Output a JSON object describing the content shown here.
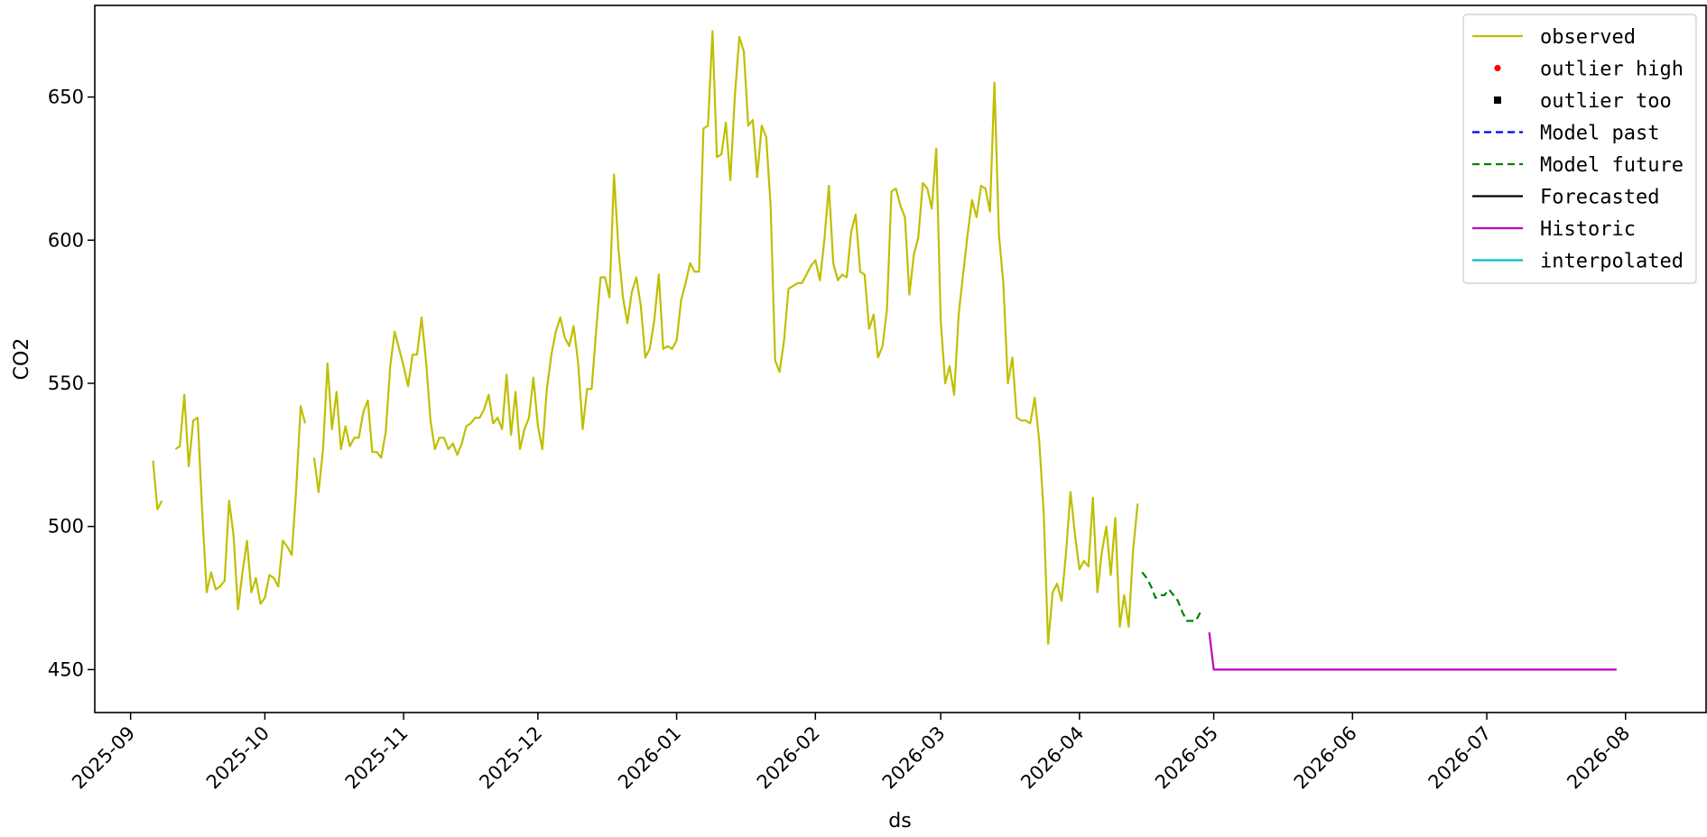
{
  "chart_data": {
    "type": "line",
    "xlabel": "ds",
    "ylabel": "CO2",
    "x_axis_type": "date",
    "xlim": [
      "2025-08-24",
      "2026-08-19"
    ],
    "ylim": [
      435,
      682
    ],
    "grid": false,
    "legend_placement": "top-right",
    "x_ticks": [
      "2025-09-01",
      "2025-10-01",
      "2025-11-01",
      "2025-12-01",
      "2026-01-01",
      "2026-02-01",
      "2026-03-01",
      "2026-04-01",
      "2026-05-01",
      "2026-06-01",
      "2026-07-01",
      "2026-08-01"
    ],
    "x_tick_labels": [
      "2025-09",
      "2025-10",
      "2025-11",
      "2025-12",
      "2026-01",
      "2026-02",
      "2026-03",
      "2026-04",
      "2026-05",
      "2026-06",
      "2026-07",
      "2026-08"
    ],
    "y_ticks": [
      450,
      500,
      550,
      600,
      650
    ],
    "y_tick_labels": [
      "450",
      "500",
      "550",
      "600",
      "650"
    ],
    "series": [
      {
        "name": "observed",
        "color": "#bfbf00",
        "style": "solid",
        "segments": [
          [
            [
              "2025-09-06",
              523
            ],
            [
              "2025-09-07",
              506
            ],
            [
              "2025-09-08",
              509
            ]
          ],
          [
            [
              "2025-09-11",
              527
            ],
            [
              "2025-09-12",
              528
            ],
            [
              "2025-09-13",
              546
            ],
            [
              "2025-09-14",
              521
            ],
            [
              "2025-09-15",
              537
            ],
            [
              "2025-09-16",
              538
            ],
            [
              "2025-09-17",
              505
            ],
            [
              "2025-09-18",
              477
            ],
            [
              "2025-09-19",
              484
            ],
            [
              "2025-09-20",
              478
            ],
            [
              "2025-09-21",
              479
            ],
            [
              "2025-09-22",
              481
            ],
            [
              "2025-09-23",
              509
            ],
            [
              "2025-09-24",
              497
            ],
            [
              "2025-09-25",
              471
            ],
            [
              "2025-09-26",
              484
            ],
            [
              "2025-09-27",
              495
            ],
            [
              "2025-09-28",
              477
            ],
            [
              "2025-09-29",
              482
            ],
            [
              "2025-09-30",
              473
            ],
            [
              "2025-10-01",
              475
            ],
            [
              "2025-10-02",
              483
            ],
            [
              "2025-10-03",
              482
            ],
            [
              "2025-10-04",
              479
            ],
            [
              "2025-10-05",
              495
            ],
            [
              "2025-10-06",
              493
            ],
            [
              "2025-10-07",
              490
            ],
            [
              "2025-10-08",
              513
            ],
            [
              "2025-10-09",
              542
            ],
            [
              "2025-10-10",
              536
            ]
          ],
          [
            [
              "2025-10-12",
              524
            ],
            [
              "2025-10-13",
              512
            ],
            [
              "2025-10-14",
              527
            ],
            [
              "2025-10-15",
              557
            ],
            [
              "2025-10-16",
              534
            ],
            [
              "2025-10-17",
              547
            ],
            [
              "2025-10-18",
              527
            ],
            [
              "2025-10-19",
              535
            ],
            [
              "2025-10-20",
              528
            ],
            [
              "2025-10-21",
              531
            ],
            [
              "2025-10-22",
              531
            ],
            [
              "2025-10-23",
              540
            ],
            [
              "2025-10-24",
              544
            ],
            [
              "2025-10-25",
              526
            ],
            [
              "2025-10-26",
              526
            ],
            [
              "2025-10-27",
              524
            ],
            [
              "2025-10-28",
              533
            ],
            [
              "2025-10-29",
              556
            ],
            [
              "2025-10-30",
              568
            ],
            [
              "2025-10-31",
              562
            ],
            [
              "2025-11-01",
              556
            ],
            [
              "2025-11-02",
              549
            ],
            [
              "2025-11-03",
              560
            ],
            [
              "2025-11-04",
              560
            ],
            [
              "2025-11-05",
              573
            ],
            [
              "2025-11-06",
              558
            ],
            [
              "2025-11-07",
              537
            ],
            [
              "2025-11-08",
              527
            ],
            [
              "2025-11-09",
              531
            ],
            [
              "2025-11-10",
              531
            ],
            [
              "2025-11-11",
              527
            ],
            [
              "2025-11-12",
              529
            ],
            [
              "2025-11-13",
              525
            ],
            [
              "2025-11-14",
              529
            ],
            [
              "2025-11-15",
              535
            ],
            [
              "2025-11-16",
              536
            ],
            [
              "2025-11-17",
              538
            ],
            [
              "2025-11-18",
              538
            ],
            [
              "2025-11-19",
              541
            ],
            [
              "2025-11-20",
              546
            ],
            [
              "2025-11-21",
              536
            ],
            [
              "2025-11-22",
              538
            ],
            [
              "2025-11-23",
              534
            ],
            [
              "2025-11-24",
              553
            ],
            [
              "2025-11-25",
              532
            ],
            [
              "2025-11-26",
              547
            ],
            [
              "2025-11-27",
              527
            ],
            [
              "2025-11-28",
              534
            ],
            [
              "2025-11-29",
              538
            ],
            [
              "2025-11-30",
              552
            ],
            [
              "2025-12-01",
              535
            ],
            [
              "2025-12-02",
              527
            ],
            [
              "2025-12-03",
              548
            ],
            [
              "2025-12-04",
              560
            ],
            [
              "2025-12-05",
              568
            ],
            [
              "2025-12-06",
              573
            ],
            [
              "2025-12-07",
              566
            ],
            [
              "2025-12-08",
              563
            ],
            [
              "2025-12-09",
              570
            ],
            [
              "2025-12-10",
              557
            ],
            [
              "2025-12-11",
              534
            ],
            [
              "2025-12-12",
              548
            ],
            [
              "2025-12-13",
              548
            ],
            [
              "2025-12-14",
              568
            ],
            [
              "2025-12-15",
              587
            ],
            [
              "2025-12-16",
              587
            ],
            [
              "2025-12-17",
              580
            ],
            [
              "2025-12-18",
              623
            ],
            [
              "2025-12-19",
              597
            ],
            [
              "2025-12-20",
              580
            ],
            [
              "2025-12-21",
              571
            ],
            [
              "2025-12-22",
              582
            ],
            [
              "2025-12-23",
              587
            ],
            [
              "2025-12-24",
              577
            ],
            [
              "2025-12-25",
              559
            ],
            [
              "2025-12-26",
              562
            ],
            [
              "2025-12-27",
              572
            ],
            [
              "2025-12-28",
              588
            ],
            [
              "2025-12-29",
              562
            ],
            [
              "2025-12-30",
              563
            ],
            [
              "2025-12-31",
              562
            ],
            [
              "2026-01-01",
              565
            ],
            [
              "2026-01-02",
              579
            ],
            [
              "2026-01-03",
              585
            ],
            [
              "2026-01-04",
              592
            ],
            [
              "2026-01-05",
              589
            ],
            [
              "2026-01-06",
              589
            ],
            [
              "2026-01-07",
              639
            ],
            [
              "2026-01-08",
              640
            ],
            [
              "2026-01-09",
              673
            ],
            [
              "2026-01-10",
              629
            ],
            [
              "2026-01-11",
              630
            ],
            [
              "2026-01-12",
              641
            ],
            [
              "2026-01-13",
              621
            ],
            [
              "2026-01-14",
              650
            ],
            [
              "2026-01-15",
              671
            ],
            [
              "2026-01-16",
              666
            ],
            [
              "2026-01-17",
              640
            ],
            [
              "2026-01-18",
              642
            ],
            [
              "2026-01-19",
              622
            ],
            [
              "2026-01-20",
              640
            ],
            [
              "2026-01-21",
              636
            ],
            [
              "2026-01-22",
              612
            ],
            [
              "2026-01-23",
              558
            ],
            [
              "2026-01-24",
              554
            ],
            [
              "2026-01-25",
              565
            ],
            [
              "2026-01-26",
              583
            ],
            [
              "2026-01-27",
              584
            ],
            [
              "2026-01-28",
              585
            ],
            [
              "2026-01-29",
              585
            ],
            [
              "2026-01-30",
              588
            ],
            [
              "2026-01-31",
              591
            ],
            [
              "2026-02-01",
              593
            ],
            [
              "2026-02-02",
              586
            ],
            [
              "2026-02-03",
              600
            ],
            [
              "2026-02-04",
              619
            ],
            [
              "2026-02-05",
              592
            ],
            [
              "2026-02-06",
              586
            ],
            [
              "2026-02-07",
              588
            ],
            [
              "2026-02-08",
              587
            ],
            [
              "2026-02-09",
              603
            ],
            [
              "2026-02-10",
              609
            ],
            [
              "2026-02-11",
              589
            ],
            [
              "2026-02-12",
              588
            ],
            [
              "2026-02-13",
              569
            ],
            [
              "2026-02-14",
              574
            ],
            [
              "2026-02-15",
              559
            ],
            [
              "2026-02-16",
              563
            ],
            [
              "2026-02-17",
              576
            ],
            [
              "2026-02-18",
              617
            ],
            [
              "2026-02-19",
              618
            ],
            [
              "2026-02-20",
              612
            ],
            [
              "2026-02-21",
              608
            ],
            [
              "2026-02-22",
              581
            ],
            [
              "2026-02-23",
              595
            ],
            [
              "2026-02-24",
              601
            ],
            [
              "2026-02-25",
              620
            ],
            [
              "2026-02-26",
              618
            ],
            [
              "2026-02-27",
              611
            ],
            [
              "2026-02-28",
              632
            ],
            [
              "2026-03-01",
              572
            ],
            [
              "2026-03-02",
              550
            ],
            [
              "2026-03-03",
              556
            ],
            [
              "2026-03-04",
              546
            ],
            [
              "2026-03-05",
              574
            ],
            [
              "2026-03-06",
              588
            ],
            [
              "2026-03-07",
              602
            ],
            [
              "2026-03-08",
              614
            ],
            [
              "2026-03-09",
              608
            ],
            [
              "2026-03-10",
              619
            ],
            [
              "2026-03-11",
              618
            ],
            [
              "2026-03-12",
              610
            ],
            [
              "2026-03-13",
              655
            ],
            [
              "2026-03-14",
              602
            ],
            [
              "2026-03-15",
              585
            ],
            [
              "2026-03-16",
              550
            ],
            [
              "2026-03-17",
              559
            ],
            [
              "2026-03-18",
              538
            ],
            [
              "2026-03-19",
              537
            ],
            [
              "2026-03-20",
              537
            ],
            [
              "2026-03-21",
              536
            ],
            [
              "2026-03-22",
              545
            ],
            [
              "2026-03-23",
              530
            ],
            [
              "2026-03-24",
              505
            ],
            [
              "2026-03-25",
              459
            ],
            [
              "2026-03-26",
              477
            ],
            [
              "2026-03-27",
              480
            ],
            [
              "2026-03-28",
              474
            ],
            [
              "2026-03-29",
              491
            ],
            [
              "2026-03-30",
              512
            ],
            [
              "2026-03-31",
              497
            ],
            [
              "2026-04-01",
              485
            ],
            [
              "2026-04-02",
              488
            ],
            [
              "2026-04-03",
              486
            ],
            [
              "2026-04-04",
              510
            ],
            [
              "2026-04-05",
              477
            ],
            [
              "2026-04-06",
              491
            ],
            [
              "2026-04-07",
              500
            ],
            [
              "2026-04-08",
              483
            ],
            [
              "2026-04-09",
              503
            ],
            [
              "2026-04-10",
              465
            ],
            [
              "2026-04-11",
              476
            ],
            [
              "2026-04-12",
              465
            ],
            [
              "2026-04-13",
              492
            ],
            [
              "2026-04-14",
              508
            ]
          ]
        ]
      },
      {
        "name": "Model future",
        "color": "#008000",
        "style": "dashed",
        "segments": [
          [
            [
              "2026-04-15",
              484
            ],
            [
              "2026-04-16",
              482
            ],
            [
              "2026-04-17",
              479
            ],
            [
              "2026-04-18",
              475
            ],
            [
              "2026-04-19",
              476
            ],
            [
              "2026-04-20",
              476
            ],
            [
              "2026-04-21",
              478
            ],
            [
              "2026-04-22",
              476
            ],
            [
              "2026-04-23",
              474
            ],
            [
              "2026-04-24",
              470
            ],
            [
              "2026-04-25",
              467
            ],
            [
              "2026-04-26",
              467
            ],
            [
              "2026-04-27",
              467
            ],
            [
              "2026-04-28",
              470
            ]
          ]
        ]
      },
      {
        "name": "Historic",
        "color": "#bf00bf",
        "style": "solid",
        "segments": [
          [
            [
              "2026-04-30",
              463
            ],
            [
              "2026-05-01",
              450
            ],
            [
              "2026-07-30",
              450
            ]
          ]
        ]
      }
    ],
    "legend": [
      {
        "label": "observed",
        "color": "#bfbf00",
        "kind": "line"
      },
      {
        "label": "outlier high",
        "color": "#ff0000",
        "kind": "circle"
      },
      {
        "label": "outlier too",
        "color": "#000000",
        "kind": "square"
      },
      {
        "label": "Model past",
        "color": "#0000ff",
        "kind": "dashed"
      },
      {
        "label": "Model future",
        "color": "#008000",
        "kind": "dashed"
      },
      {
        "label": "Forecasted",
        "color": "#000000",
        "kind": "line"
      },
      {
        "label": "Historic",
        "color": "#bf00bf",
        "kind": "line"
      },
      {
        "label": "interpolated",
        "color": "#00bfbf",
        "kind": "line"
      }
    ]
  }
}
